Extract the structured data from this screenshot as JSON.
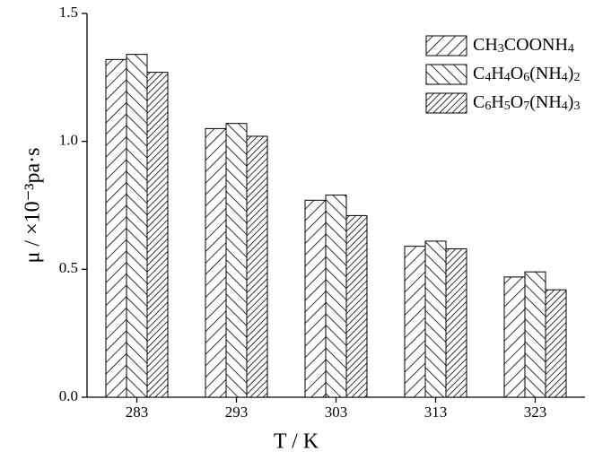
{
  "chart_data": {
    "type": "bar",
    "x_label": "T / K",
    "y_label": "μ / ×10⁻³pa·s",
    "categories": [
      "283",
      "293",
      "303",
      "313",
      "323"
    ],
    "series": [
      {
        "name": "CH3COONH4",
        "color": "#000000",
        "hatch": "forward",
        "values": [
          1.32,
          1.05,
          0.77,
          0.59,
          0.47
        ]
      },
      {
        "name": "C4H4O6(NH4)2",
        "color": "#000000",
        "hatch": "backward",
        "values": [
          1.34,
          1.07,
          0.79,
          0.61,
          0.49
        ]
      },
      {
        "name": "C6H5O7(NH4)3",
        "color": "#000000",
        "hatch": "forward-dense",
        "values": [
          1.27,
          1.02,
          0.71,
          0.58,
          0.42
        ]
      }
    ],
    "ylim": [
      0,
      1.5
    ],
    "yticks": [
      {
        "value": 0,
        "label": "0.0"
      },
      {
        "value": 0.5,
        "label": "0.5"
      },
      {
        "value": 1,
        "label": "1.0"
      },
      {
        "value": 1.5,
        "label": "1.5"
      }
    ],
    "grid": false,
    "legend": "top-right"
  }
}
